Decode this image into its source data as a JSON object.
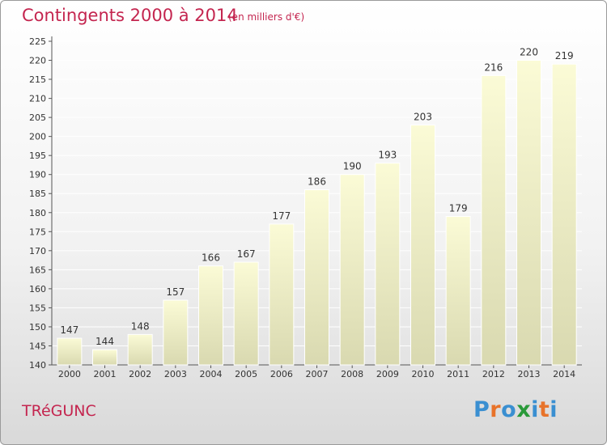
{
  "header": {
    "title": "Contingents 2000 à 2014",
    "subtitle": "(en milliers d'€)"
  },
  "footer": {
    "city": "TRéGUNC",
    "logo": [
      "P",
      "r",
      "o",
      "x",
      "i",
      "t",
      "i"
    ]
  },
  "colors": {
    "title": "#c4254f",
    "bar": "#f4f4c2",
    "bar_shade": "#d6d6a8",
    "logo_letters": [
      "#3a8fd1",
      "#e8732a",
      "#3a8fd1",
      "#2a9a3a",
      "#3a8fd1",
      "#e8732a",
      "#3a8fd1"
    ]
  },
  "chart_data": {
    "type": "bar",
    "title": "Contingents 2000 à 2014",
    "subtitle": "(en milliers d'€)",
    "categories": [
      "2000",
      "2001",
      "2002",
      "2003",
      "2004",
      "2005",
      "2006",
      "2007",
      "2008",
      "2009",
      "2010",
      "2011",
      "2012",
      "2013",
      "2014"
    ],
    "values": [
      147,
      144,
      148,
      157,
      166,
      167,
      177,
      186,
      190,
      193,
      203,
      179,
      216,
      220,
      219
    ],
    "ylim": [
      140,
      225
    ],
    "yticks": [
      140,
      145,
      150,
      155,
      160,
      165,
      170,
      175,
      180,
      185,
      190,
      195,
      200,
      205,
      210,
      215,
      220,
      225
    ],
    "grid": true
  }
}
